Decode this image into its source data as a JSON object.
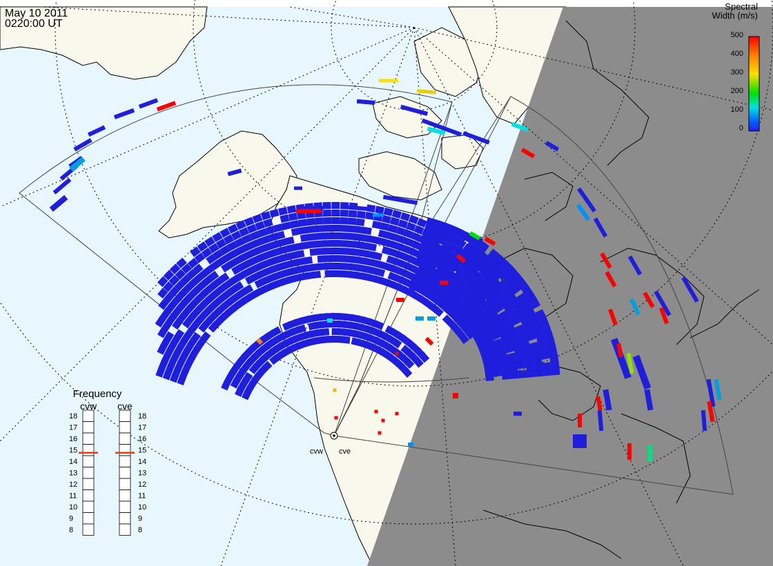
{
  "header": {
    "date": "May 10 2011",
    "time": "0220:00 UT"
  },
  "colorbar": {
    "title_line1": "Spectral",
    "title_line2": "Width (m/s)",
    "ticks": [
      "500",
      "400",
      "300",
      "200",
      "100",
      "0"
    ],
    "colors": [
      "#ff0000",
      "#ff8000",
      "#ffe000",
      "#00e000",
      "#00e0e0",
      "#0060ff",
      "#2020ff"
    ]
  },
  "radars": {
    "west_label": "cvw",
    "east_label": "cve"
  },
  "frequency": {
    "title": "Frequency",
    "west_label": "cvw",
    "east_label": "cve",
    "ticks": [
      "18",
      "17",
      "16",
      "15",
      "14",
      "13",
      "12",
      "11",
      "10",
      "9",
      "8"
    ],
    "west_value": 15,
    "east_value": 15,
    "min": 8,
    "max": 18,
    "marker_color": "#ff3300"
  },
  "colors": {
    "ocean": "#e8f6fd",
    "land": "#f8f8ec",
    "night": "#8c8c8c",
    "echo": "#1e1edc"
  }
}
